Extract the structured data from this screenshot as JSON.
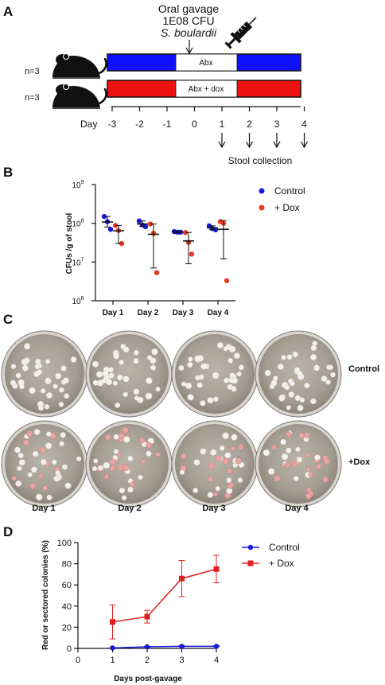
{
  "panel_a": {
    "label": "A",
    "gavage_line1": "Oral gavage",
    "gavage_line2": "1E08 CFU",
    "gavage_line3": "S. boulardii",
    "group1_n": "n=3",
    "group1_label": "Abx",
    "group1_color": "#1010ff",
    "group2_n": "n=3",
    "group2_label": "Abx + dox",
    "group2_color": "#ee1111",
    "day_word": "Day",
    "days": [
      "-3",
      "-2",
      "-1",
      "0",
      "1",
      "2",
      "3",
      "4"
    ],
    "stool_label": "Stool collection"
  },
  "panel_b": {
    "label": "B",
    "ylabel": "CFUs /g of stool",
    "yticks": [
      {
        "base": "10",
        "exp": "9"
      },
      {
        "base": "10",
        "exp": "8"
      },
      {
        "base": "10",
        "exp": "7"
      },
      {
        "base": "10",
        "exp": "6"
      }
    ],
    "categories": [
      "Day 1",
      "Day 2",
      "Day 3",
      "Day 4"
    ],
    "legend": [
      {
        "name": "Control",
        "color": "#1a1adf"
      },
      {
        "name": "+ Dox",
        "color": "#e83a1e"
      }
    ]
  },
  "panel_c": {
    "label": "C",
    "row_labels": [
      "Control",
      "+Dox"
    ],
    "col_labels": [
      "Day 1",
      "Day 2",
      "Day 3",
      "Day 4"
    ]
  },
  "panel_d": {
    "label": "D",
    "ylabel_line1": "Red or sectored colonies (%)",
    "xlabel": "Days post-gavage",
    "yticks": [
      "0",
      "20",
      "40",
      "60",
      "80",
      "100"
    ],
    "xticks": [
      "0",
      "1",
      "2",
      "3",
      "4"
    ],
    "legend": [
      {
        "name": "Control",
        "color": "#1a1adf"
      },
      {
        "name": "+ Dox",
        "color": "#e02020"
      }
    ]
  },
  "chart_data": [
    {
      "type": "scatter",
      "panel": "B",
      "y_scale": "log",
      "ylim": [
        1000000,
        1000000000
      ],
      "ylabel": "CFUs /g of stool",
      "categories": [
        "Day 1",
        "Day 2",
        "Day 3",
        "Day 4"
      ],
      "series": [
        {
          "name": "Control",
          "color": "#1a1adf",
          "points": [
            [
              150000000,
              110000000,
              70000000
            ],
            [
              115000000,
              90000000,
              82000000
            ],
            [
              61000000,
              59000000,
              59000000
            ],
            [
              86000000,
              73000000,
              68000000
            ]
          ],
          "mean": [
            108000000,
            96000000,
            60000000,
            76000000
          ],
          "sd_low": [
            80000000,
            84000000,
            57000000,
            68000000
          ],
          "sd_high": [
            150000000,
            115000000,
            62000000,
            86000000
          ]
        },
        {
          "name": "+ Dox",
          "color": "#e83a1e",
          "points": [
            [
              88000000,
              65000000,
              30000000
            ],
            [
              96000000,
              55000000,
              5300000
            ],
            [
              58000000,
              32000000,
              16000000
            ],
            [
              110000000,
              100000000,
              3300000
            ]
          ],
          "mean": [
            64000000,
            52000000,
            35000000,
            70000000
          ],
          "sd_low": [
            30000000,
            7000000,
            9000000,
            12000000
          ],
          "sd_high": [
            88000000,
            96000000,
            58000000,
            118000000
          ]
        }
      ]
    },
    {
      "type": "line",
      "panel": "D",
      "x": [
        1,
        2,
        3,
        4
      ],
      "xlim": [
        0,
        4
      ],
      "ylim": [
        0,
        100
      ],
      "xlabel": "Days post-gavage",
      "ylabel": "Red or sectored colonies (%)",
      "series": [
        {
          "name": "Control",
          "color": "#1a1adf",
          "marker": "circle",
          "values": [
            0.5,
            1.5,
            2,
            2
          ],
          "err": [
            0.3,
            0.5,
            0.5,
            0.5
          ]
        },
        {
          "name": "+ Dox",
          "color": "#e02020",
          "marker": "square",
          "values": [
            25,
            30,
            66,
            75
          ],
          "err": [
            16,
            6,
            17,
            13
          ]
        }
      ]
    }
  ]
}
